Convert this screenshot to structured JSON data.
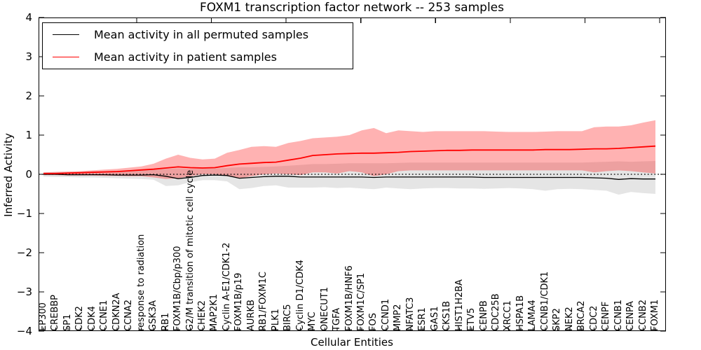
{
  "title": "FOXM1 transcription factor network -- 253 samples",
  "axes": {
    "ylabel": "Inferred Activity",
    "xlabel": "Cellular Entities",
    "yticklabels": [
      "4",
      "3",
      "2",
      "1",
      "0",
      "−1",
      "−2",
      "−3",
      "−4"
    ]
  },
  "legend": {
    "items": [
      {
        "label": "Mean activity in all permuted samples",
        "color": "#000000"
      },
      {
        "label": "Mean activity in patient samples",
        "color": "#ff0000"
      }
    ]
  },
  "colors": {
    "patient_line": "#ff0000",
    "patient_band": "rgba(255,0,0,0.30)",
    "permuted_line": "#000000",
    "permuted_band": "rgba(0,0,0,0.10)",
    "reference_dotted": "#000000",
    "spine": "#000000"
  },
  "chart_data": {
    "type": "line",
    "title": "FOXM1 transcription factor network -- 253 samples",
    "xlabel": "Cellular Entities",
    "ylabel": "Inferred Activity",
    "ylim": [
      -4,
      4
    ],
    "yticks": [
      4,
      3,
      2,
      1,
      0,
      -1,
      -2,
      -3,
      -4
    ],
    "grid": false,
    "legend_position": "upper left",
    "reference_line": {
      "y": 0,
      "style": "dotted"
    },
    "categories": [
      "EP300",
      "CREBBP",
      "SP1",
      "CDK2",
      "CDK4",
      "CCNE1",
      "CDKN2A",
      "CCNA2",
      "response to radiation",
      "GSK3A",
      "RB1",
      "FOXM1B/Cbp/p300",
      "G2/M transition of mitotic cell cycle",
      "CHEK2",
      "MAP2K1",
      "Cyclin A-E1/CDK1-2",
      "FOXM1B/p19",
      "AURKB",
      "RB1/FOXM1C",
      "PLK1",
      "BIRC5",
      "Cyclin D1/CDK4",
      "MYC",
      "ONECUT1",
      "TGFA",
      "FOXM1B/HNF6",
      "FOXM1C/SP1",
      "FOS",
      "CCND1",
      "MMP2",
      "NFATC3",
      "ESR1",
      "GAS1",
      "CKS1B",
      "HIST1H2BA",
      "ETV5",
      "CENPB",
      "CDC25B",
      "XRCC1",
      "HSPA1B",
      "LAMA4",
      "CCNB1/CDK1",
      "SKP2",
      "NEK2",
      "BRCA2",
      "CDC2",
      "CENPF",
      "CCNB1",
      "CENPA",
      "CCNB2",
      "FOXM1"
    ],
    "series": [
      {
        "name": "Mean activity in all permuted samples",
        "color": "#000000",
        "values": [
          0.0,
          0.0,
          -0.01,
          -0.01,
          -0.01,
          -0.01,
          -0.02,
          -0.02,
          -0.02,
          -0.01,
          -0.05,
          -0.11,
          -0.08,
          -0.03,
          -0.02,
          -0.03,
          -0.1,
          -0.08,
          -0.06,
          -0.05,
          -0.05,
          -0.07,
          -0.07,
          -0.07,
          -0.07,
          -0.07,
          -0.07,
          -0.08,
          -0.07,
          -0.07,
          -0.07,
          -0.07,
          -0.07,
          -0.07,
          -0.07,
          -0.07,
          -0.08,
          -0.08,
          -0.08,
          -0.08,
          -0.08,
          -0.08,
          -0.08,
          -0.08,
          -0.08,
          -0.09,
          -0.1,
          -0.13,
          -0.11,
          -0.12,
          -0.12
        ],
        "upper": [
          0.05,
          0.06,
          0.06,
          0.07,
          0.08,
          0.08,
          0.09,
          0.1,
          0.11,
          0.12,
          0.14,
          0.15,
          0.14,
          0.14,
          0.15,
          0.16,
          0.18,
          0.18,
          0.19,
          0.2,
          0.22,
          0.24,
          0.26,
          0.26,
          0.27,
          0.28,
          0.28,
          0.28,
          0.28,
          0.29,
          0.3,
          0.3,
          0.3,
          0.3,
          0.3,
          0.3,
          0.3,
          0.3,
          0.3,
          0.3,
          0.3,
          0.3,
          0.3,
          0.3,
          0.3,
          0.31,
          0.32,
          0.33,
          0.32,
          0.33,
          0.34
        ],
        "lower": [
          -0.06,
          -0.07,
          -0.07,
          -0.08,
          -0.08,
          -0.09,
          -0.1,
          -0.11,
          -0.12,
          -0.14,
          -0.3,
          -0.28,
          -0.2,
          -0.15,
          -0.15,
          -0.18,
          -0.38,
          -0.35,
          -0.3,
          -0.28,
          -0.34,
          -0.34,
          -0.34,
          -0.33,
          -0.35,
          -0.34,
          -0.36,
          -0.38,
          -0.34,
          -0.36,
          -0.38,
          -0.36,
          -0.35,
          -0.35,
          -0.36,
          -0.36,
          -0.37,
          -0.36,
          -0.35,
          -0.36,
          -0.38,
          -0.42,
          -0.38,
          -0.37,
          -0.38,
          -0.4,
          -0.42,
          -0.52,
          -0.45,
          -0.48,
          -0.5
        ]
      },
      {
        "name": "Mean activity in patient samples",
        "color": "#ff0000",
        "values": [
          0.02,
          0.02,
          0.03,
          0.04,
          0.05,
          0.06,
          0.07,
          0.09,
          0.11,
          0.13,
          0.16,
          0.19,
          0.17,
          0.16,
          0.17,
          0.22,
          0.26,
          0.28,
          0.3,
          0.31,
          0.36,
          0.41,
          0.48,
          0.5,
          0.52,
          0.53,
          0.54,
          0.54,
          0.55,
          0.56,
          0.58,
          0.59,
          0.6,
          0.61,
          0.61,
          0.62,
          0.62,
          0.62,
          0.62,
          0.62,
          0.62,
          0.63,
          0.63,
          0.63,
          0.64,
          0.65,
          0.65,
          0.66,
          0.68,
          0.7,
          0.72
        ],
        "upper": [
          0.05,
          0.06,
          0.07,
          0.08,
          0.1,
          0.12,
          0.14,
          0.17,
          0.2,
          0.27,
          0.4,
          0.5,
          0.42,
          0.38,
          0.4,
          0.55,
          0.62,
          0.7,
          0.72,
          0.7,
          0.8,
          0.85,
          0.92,
          0.94,
          0.96,
          1.0,
          1.12,
          1.18,
          1.05,
          1.12,
          1.1,
          1.08,
          1.1,
          1.1,
          1.1,
          1.1,
          1.1,
          1.09,
          1.08,
          1.08,
          1.08,
          1.09,
          1.1,
          1.1,
          1.1,
          1.2,
          1.22,
          1.22,
          1.25,
          1.32,
          1.38
        ],
        "lower": [
          -0.02,
          -0.02,
          -0.03,
          -0.03,
          -0.03,
          -0.04,
          -0.04,
          -0.05,
          -0.05,
          -0.08,
          -0.12,
          -0.1,
          -0.05,
          0.0,
          0.0,
          -0.05,
          -0.1,
          -0.05,
          0.0,
          0.02,
          0.0,
          -0.02,
          0.05,
          0.05,
          0.02,
          0.08,
          0.05,
          -0.05,
          0.0,
          0.08,
          0.1,
          0.1,
          0.1,
          0.1,
          0.1,
          0.1,
          0.1,
          0.1,
          0.1,
          0.1,
          0.1,
          0.1,
          0.1,
          0.1,
          0.1,
          0.05,
          0.08,
          0.1,
          0.08,
          0.05,
          0.02
        ]
      }
    ]
  }
}
